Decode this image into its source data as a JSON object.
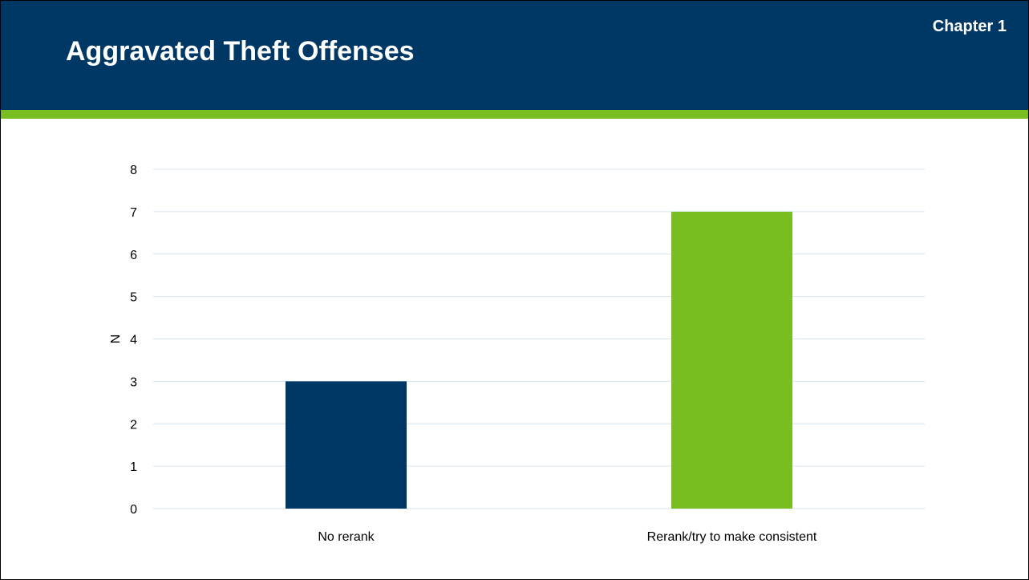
{
  "slide": {
    "title": "Aggravated Theft Offenses",
    "chapter": "Chapter 1"
  },
  "colors": {
    "header_bg": "#003865",
    "header_stripe": "#78be20",
    "bar_navy": "#003865",
    "bar_green": "#78be20",
    "gridline": "#d6e4f0"
  },
  "chart_data": {
    "type": "bar",
    "categories": [
      "No rerank",
      "Rerank/try to make consistent"
    ],
    "values": [
      3,
      7
    ],
    "bar_colors": [
      "#003865",
      "#78be20"
    ],
    "title": "",
    "xlabel": "",
    "ylabel": "N",
    "ylim": [
      0,
      8
    ],
    "yticks": [
      0,
      1,
      2,
      3,
      4,
      5,
      6,
      7,
      8
    ],
    "grid": true,
    "legend": "none"
  }
}
